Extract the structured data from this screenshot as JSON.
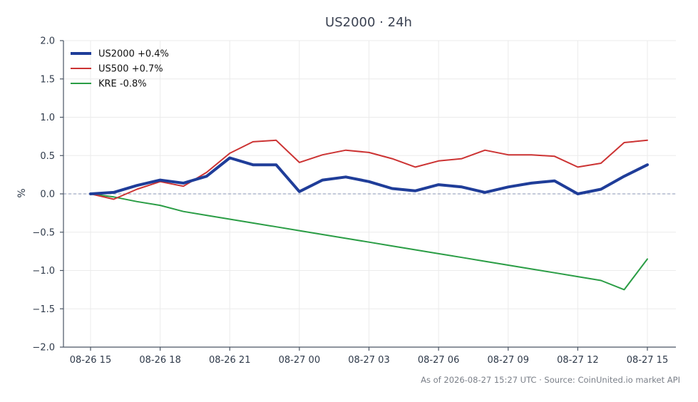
{
  "chart_data": {
    "type": "line",
    "title": "US2000 · 24h",
    "xlabel": "",
    "ylabel": "%",
    "ylim": [
      -2.0,
      2.0
    ],
    "yticks": [
      2.0,
      1.5,
      1.0,
      0.5,
      0.0,
      -0.5,
      -1.0,
      -1.5,
      -2.0
    ],
    "ytick_labels": [
      "2.0",
      "1.5",
      "1.0",
      "0.5",
      "0.0",
      "−0.5",
      "−1.0",
      "−1.5",
      "−2.0"
    ],
    "x_tick_labels": [
      "08-26 15",
      "08-26 18",
      "08-26 21",
      "08-27 00",
      "08-27 03",
      "08-27 06",
      "08-27 09",
      "08-27 12",
      "08-27 15"
    ],
    "x": [
      "08-26 15",
      "08-26 16",
      "08-26 17",
      "08-26 18",
      "08-26 19",
      "08-26 20",
      "08-26 21",
      "08-26 22",
      "08-26 23",
      "08-27 00",
      "08-27 01",
      "08-27 02",
      "08-27 03",
      "08-27 04",
      "08-27 05",
      "08-27 06",
      "08-27 07",
      "08-27 08",
      "08-27 09",
      "08-27 10",
      "08-27 11",
      "08-27 12",
      "08-27 13",
      "08-27 14",
      "08-27 15"
    ],
    "grid": true,
    "zero_line": true,
    "legend_position": "top-left",
    "series": [
      {
        "name": "US2000 +0.4%",
        "color": "#1f3d99",
        "line_width": "thick",
        "values": [
          0.0,
          0.02,
          0.11,
          0.18,
          0.14,
          0.23,
          0.47,
          0.38,
          0.38,
          0.03,
          0.18,
          0.22,
          0.16,
          0.07,
          0.04,
          0.12,
          0.09,
          0.02,
          0.09,
          0.14,
          0.17,
          0.0,
          0.06,
          0.23,
          0.38
        ]
      },
      {
        "name": "US500 +0.7%",
        "color": "#cc3333",
        "line_width": "normal",
        "values": [
          0.0,
          -0.07,
          0.06,
          0.16,
          0.1,
          0.28,
          0.53,
          0.68,
          0.7,
          0.41,
          0.51,
          0.57,
          0.54,
          0.46,
          0.35,
          0.43,
          0.46,
          0.57,
          0.51,
          0.51,
          0.49,
          0.35,
          0.4,
          0.67,
          0.7
        ]
      },
      {
        "name": "KRE -0.8%",
        "color": "#2a9d45",
        "line_width": "normal",
        "values": [
          0.0,
          -0.04,
          -0.1,
          -0.15,
          -0.23,
          -0.28,
          -0.33,
          -0.38,
          -0.43,
          -0.48,
          -0.53,
          -0.58,
          -0.63,
          -0.68,
          -0.73,
          -0.78,
          -0.83,
          -0.88,
          -0.93,
          -0.98,
          -1.03,
          -1.08,
          -1.13,
          -1.25,
          -0.85
        ]
      }
    ]
  },
  "footer": "As of 2026-08-27 15:27 UTC · Source: CoinUnited.io market API"
}
